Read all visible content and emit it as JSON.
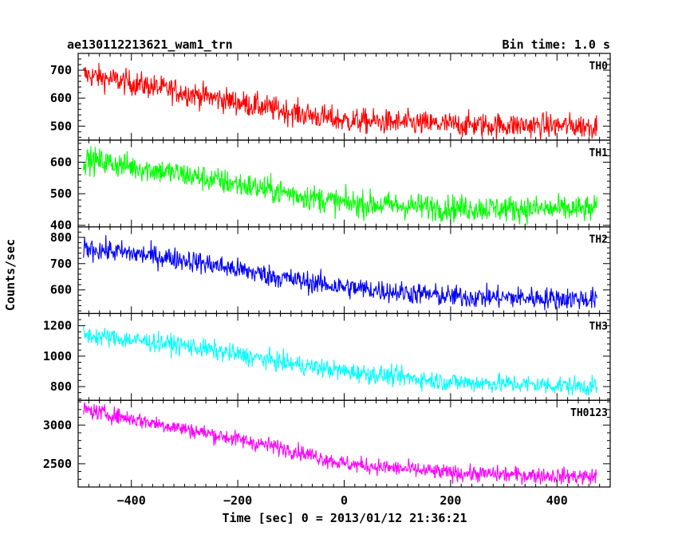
{
  "chart_data": {
    "type": "line",
    "title": "ae130112213621_wam1_trn",
    "subtitle": "Bin time: 1.0 s",
    "xlabel": "Time [sec] 0 = 2013/01/12 21:36:21",
    "ylabel": "Counts/sec",
    "xlim": [
      -500,
      500
    ],
    "x_ticks": [
      "-400",
      "-200",
      "0",
      "200",
      "400"
    ],
    "x_range_data": [
      -490,
      475
    ],
    "panels": [
      {
        "name": "TH0",
        "color": "#ff0000",
        "ylim": [
          450,
          760
        ],
        "y_ticks": [
          "500",
          "600",
          "700"
        ],
        "trend": [
          [
            -490,
            685
          ],
          [
            -300,
            620
          ],
          [
            -100,
            550
          ],
          [
            0,
            520
          ],
          [
            200,
            505
          ],
          [
            475,
            500
          ]
        ],
        "noise": 32
      },
      {
        "name": "TH1",
        "color": "#00ff00",
        "ylim": [
          395,
          670
        ],
        "y_ticks": [
          "400",
          "500",
          "600"
        ],
        "trend": [
          [
            -490,
            610
          ],
          [
            -300,
            560
          ],
          [
            -100,
            500
          ],
          [
            0,
            470
          ],
          [
            200,
            455
          ],
          [
            475,
            450
          ]
        ],
        "noise": 30
      },
      {
        "name": "TH2",
        "color": "#0000ff",
        "ylim": [
          510,
          840
        ],
        "y_ticks": [
          "600",
          "700",
          "800"
        ],
        "trend": [
          [
            -490,
            760
          ],
          [
            -300,
            715
          ],
          [
            -100,
            640
          ],
          [
            0,
            610
          ],
          [
            200,
            575
          ],
          [
            475,
            565
          ]
        ],
        "noise": 30
      },
      {
        "name": "TH3",
        "color": "#00ffff",
        "ylim": [
          710,
          1280
        ],
        "y_ticks": [
          "800",
          "1000",
          "1200"
        ],
        "trend": [
          [
            -490,
            1140
          ],
          [
            -300,
            1070
          ],
          [
            -100,
            950
          ],
          [
            0,
            900
          ],
          [
            200,
            830
          ],
          [
            475,
            800
          ]
        ],
        "noise": 45
      },
      {
        "name": "TH0123",
        "color": "#ff00ff",
        "ylim": [
          2200,
          3320
        ],
        "y_ticks": [
          "2500",
          "3000"
        ],
        "trend": [
          [
            -490,
            3200
          ],
          [
            -300,
            2950
          ],
          [
            -100,
            2680
          ],
          [
            0,
            2500
          ],
          [
            200,
            2380
          ],
          [
            475,
            2330
          ]
        ],
        "noise": 75
      }
    ]
  }
}
